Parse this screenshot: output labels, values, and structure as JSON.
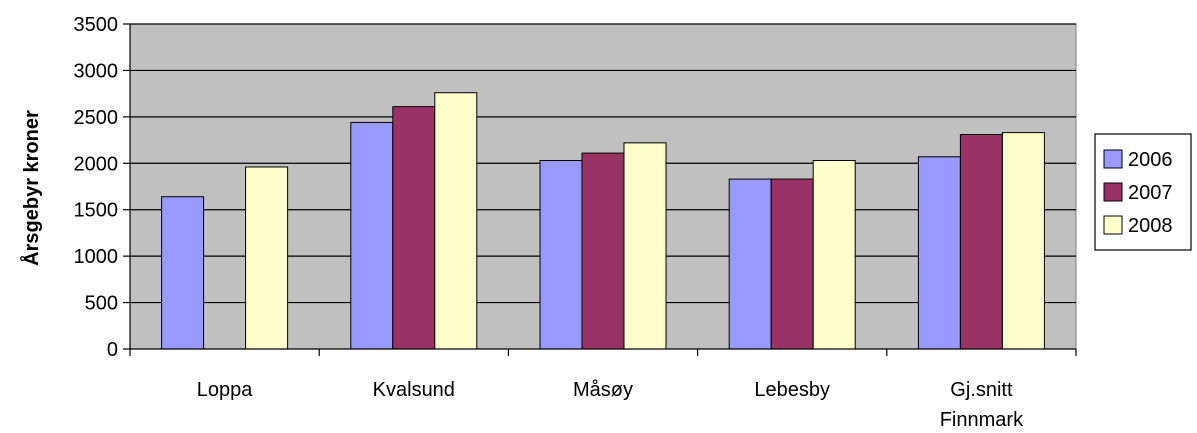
{
  "chart_data": {
    "type": "bar",
    "title": "",
    "xlabel": "",
    "ylabel": "Årsgebyr kroner",
    "ylim": [
      0,
      3500
    ],
    "yticks": [
      0,
      500,
      1000,
      1500,
      2000,
      2500,
      3000,
      3500
    ],
    "grid": true,
    "legend_position": "right",
    "categories": [
      "Loppa",
      "Kvalsund",
      "Måsøy",
      "Lebesby",
      "Gj.snitt Finnmark"
    ],
    "category_lines": [
      [
        "Loppa"
      ],
      [
        "Kvalsund"
      ],
      [
        "Måsøy"
      ],
      [
        "Lebesby"
      ],
      [
        "Gj.snitt",
        "Finnmark"
      ]
    ],
    "series": [
      {
        "name": "2006",
        "color": "#9999ff",
        "values": [
          1640,
          2440,
          2030,
          1830,
          2070
        ]
      },
      {
        "name": "2007",
        "color": "#993366",
        "values": [
          null,
          2610,
          2110,
          1830,
          2310
        ]
      },
      {
        "name": "2008",
        "color": "#ffffcc",
        "values": [
          1960,
          2760,
          2220,
          2030,
          2330
        ]
      }
    ],
    "plot_background": "#c0c0c0"
  }
}
